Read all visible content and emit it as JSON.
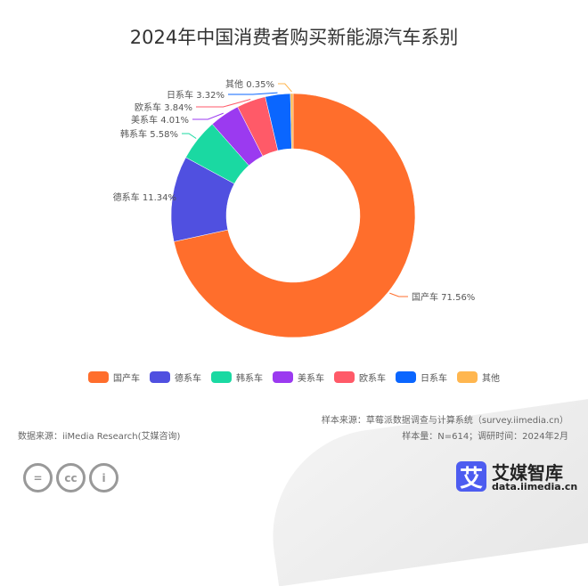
{
  "chart_data": {
    "type": "pie",
    "donut": true,
    "title": "2024年中国消费者购买新能源汽车系别",
    "categories": [
      "国产车",
      "德系车",
      "韩系车",
      "美系车",
      "欧系车",
      "日系车",
      "其他"
    ],
    "values": [
      71.56,
      11.34,
      5.58,
      4.01,
      3.84,
      3.32,
      0.35
    ],
    "labels": [
      "国产车 71.56%",
      "德系车 11.34%",
      "韩系车 5.58%",
      "美系车 4.01%",
      "欧系车 3.84%",
      "日系车 3.32%",
      "其他 0.35%"
    ],
    "colors": [
      "#FF6E2C",
      "#5050E0",
      "#1AD9A2",
      "#9B3AF0",
      "#FF5A68",
      "#0A66FF",
      "#FFB64F"
    ],
    "legend": "bottom"
  },
  "footer": {
    "source": "数据来源：iiMedia Research(艾媒咨询)",
    "sample_source": "样本来源：草莓派数据调查与计算系统（survey.iimedia.cn）",
    "sample_size": "样本量：N=614；调研时间：2024年2月",
    "brand": "艾媒智库",
    "logo_char": "艾",
    "url": "data.iimedia.cn",
    "cc_icons": [
      "=",
      "cc",
      "i"
    ]
  }
}
